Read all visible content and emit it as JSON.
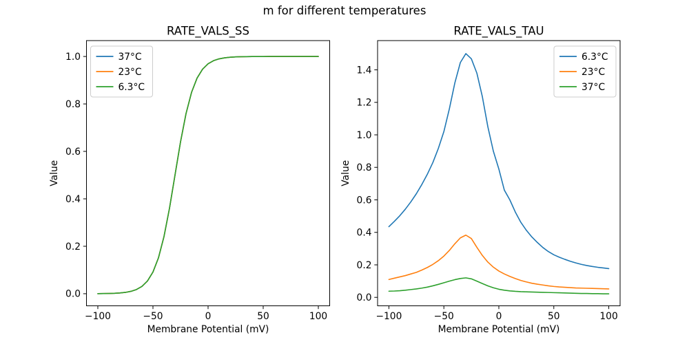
{
  "figure": {
    "suptitle": "m for different temperatures",
    "background": "#ffffff"
  },
  "palette": {
    "blue": "#1f77b4",
    "orange": "#ff7f0e",
    "green": "#2ca02c",
    "spine": "#000000",
    "text": "#000000",
    "legend_border": "#cccccc",
    "legend_fill": "#ffffff"
  },
  "chart_data": [
    {
      "type": "line",
      "title": "RATE_VALS_SS",
      "xlabel": "Membrane Potential (mV)",
      "ylabel": "Value",
      "xlim": [
        -110.3,
        110.3
      ],
      "ylim": [
        -0.051,
        1.067
      ],
      "xticks": [
        -100,
        -50,
        0,
        50,
        100
      ],
      "yticks": [
        0.0,
        0.2,
        0.4,
        0.6,
        0.8,
        1.0
      ],
      "ytick_decimals": 1,
      "grid": false,
      "legend": {
        "position": "top-left",
        "entries": [
          "37°C",
          "23°C",
          "6.3°C"
        ]
      },
      "x": [
        -100,
        -95,
        -90,
        -85,
        -80,
        -75,
        -70,
        -65,
        -60,
        -55,
        -50,
        -45,
        -40,
        -35,
        -30,
        -25,
        -20,
        -15,
        -10,
        -5,
        0,
        5,
        10,
        15,
        20,
        25,
        30,
        35,
        40,
        45,
        50,
        55,
        60,
        65,
        70,
        75,
        80,
        85,
        90,
        95,
        100
      ],
      "series": [
        {
          "name": "37°C",
          "color": "#1f77b4",
          "values": [
            0.0003,
            0.0006,
            0.001,
            0.0018,
            0.0032,
            0.0056,
            0.01,
            0.0176,
            0.0308,
            0.0535,
            0.0912,
            0.1513,
            0.2406,
            0.36,
            0.5,
            0.64,
            0.7594,
            0.8487,
            0.9088,
            0.9465,
            0.9692,
            0.9824,
            0.99,
            0.9943,
            0.9968,
            0.9982,
            0.999,
            0.9994,
            0.9997,
            0.9998,
            0.9999,
            1.0,
            1.0,
            1.0,
            1.0,
            1.0,
            1.0,
            1.0,
            1.0,
            1.0,
            1.0
          ]
        },
        {
          "name": "23°C",
          "color": "#ff7f0e",
          "values": [
            0.0003,
            0.0006,
            0.001,
            0.0018,
            0.0032,
            0.0056,
            0.01,
            0.0176,
            0.0308,
            0.0535,
            0.0912,
            0.1513,
            0.2406,
            0.36,
            0.5,
            0.64,
            0.7594,
            0.8487,
            0.9088,
            0.9465,
            0.9692,
            0.9824,
            0.99,
            0.9943,
            0.9968,
            0.9982,
            0.999,
            0.9994,
            0.9997,
            0.9998,
            0.9999,
            1.0,
            1.0,
            1.0,
            1.0,
            1.0,
            1.0,
            1.0,
            1.0,
            1.0,
            1.0
          ]
        },
        {
          "name": "6.3°C",
          "color": "#2ca02c",
          "values": [
            0.0003,
            0.0006,
            0.001,
            0.0018,
            0.0032,
            0.0056,
            0.01,
            0.0176,
            0.0308,
            0.0535,
            0.0912,
            0.1513,
            0.2406,
            0.36,
            0.5,
            0.64,
            0.7594,
            0.8487,
            0.9088,
            0.9465,
            0.9692,
            0.9824,
            0.99,
            0.9943,
            0.9968,
            0.9982,
            0.999,
            0.9994,
            0.9997,
            0.9998,
            0.9999,
            1.0,
            1.0,
            1.0,
            1.0,
            1.0,
            1.0,
            1.0,
            1.0,
            1.0,
            1.0
          ]
        }
      ]
    },
    {
      "type": "line",
      "title": "RATE_VALS_TAU",
      "xlabel": "Membrane Potential (mV)",
      "ylabel": "Value",
      "xlim": [
        -110.3,
        110.3
      ],
      "ylim": [
        -0.052,
        1.58
      ],
      "xticks": [
        -100,
        -50,
        0,
        50,
        100
      ],
      "yticks": [
        0.0,
        0.2,
        0.4,
        0.6,
        0.8,
        1.0,
        1.2,
        1.4
      ],
      "ytick_decimals": 1,
      "grid": false,
      "legend": {
        "position": "top-right",
        "entries": [
          "6.3°C",
          "23°C",
          "37°C"
        ]
      },
      "x": [
        -100,
        -95,
        -90,
        -85,
        -80,
        -75,
        -70,
        -65,
        -60,
        -55,
        -50,
        -45,
        -40,
        -35,
        -30,
        -25,
        -20,
        -15,
        -10,
        -5,
        0,
        5,
        10,
        15,
        20,
        25,
        30,
        35,
        40,
        45,
        50,
        55,
        60,
        65,
        70,
        75,
        80,
        85,
        90,
        95,
        100
      ],
      "series": [
        {
          "name": "6.3°C",
          "color": "#1f77b4",
          "values": [
            0.435,
            0.468,
            0.503,
            0.543,
            0.588,
            0.638,
            0.695,
            0.758,
            0.83,
            0.917,
            1.02,
            1.16,
            1.32,
            1.445,
            1.5,
            1.468,
            1.38,
            1.235,
            1.05,
            0.9,
            0.79,
            0.66,
            0.6,
            0.525,
            0.462,
            0.413,
            0.372,
            0.338,
            0.307,
            0.282,
            0.262,
            0.247,
            0.234,
            0.222,
            0.212,
            0.203,
            0.196,
            0.19,
            0.185,
            0.181,
            0.177
          ]
        },
        {
          "name": "23°C",
          "color": "#ff7f0e",
          "values": [
            0.11,
            0.118,
            0.126,
            0.134,
            0.144,
            0.154,
            0.168,
            0.184,
            0.203,
            0.226,
            0.254,
            0.289,
            0.33,
            0.366,
            0.383,
            0.362,
            0.308,
            0.258,
            0.217,
            0.186,
            0.162,
            0.144,
            0.129,
            0.116,
            0.104,
            0.095,
            0.087,
            0.081,
            0.076,
            0.071,
            0.067,
            0.064,
            0.062,
            0.06,
            0.058,
            0.057,
            0.056,
            0.055,
            0.054,
            0.053,
            0.052
          ]
        },
        {
          "name": "37°C",
          "color": "#2ca02c",
          "values": [
            0.038,
            0.039,
            0.041,
            0.044,
            0.048,
            0.052,
            0.057,
            0.063,
            0.071,
            0.08,
            0.09,
            0.1,
            0.109,
            0.116,
            0.12,
            0.114,
            0.1,
            0.085,
            0.071,
            0.059,
            0.05,
            0.044,
            0.04,
            0.037,
            0.035,
            0.034,
            0.033,
            0.032,
            0.031,
            0.03,
            0.029,
            0.028,
            0.027,
            0.026,
            0.025,
            0.024,
            0.024,
            0.023,
            0.023,
            0.022,
            0.022
          ]
        }
      ]
    }
  ]
}
